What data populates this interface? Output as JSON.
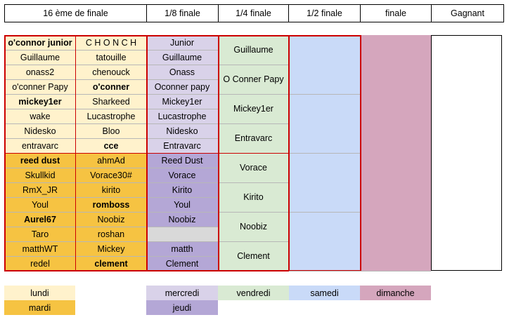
{
  "headers": [
    "16 ème de finale",
    "1/8 finale",
    "1/4 finale",
    "1/2 finale",
    "finale",
    "Gagnant"
  ],
  "round16": {
    "left": [
      {
        "name": "o'connor junior",
        "bold": true
      },
      {
        "name": "Guillaume",
        "bold": false
      },
      {
        "name": "onass2",
        "bold": false
      },
      {
        "name": "o'conner Papy",
        "bold": false
      },
      {
        "name": "mickey1er",
        "bold": true
      },
      {
        "name": "wake",
        "bold": false
      },
      {
        "name": "Nidesko",
        "bold": false
      },
      {
        "name": "entravarc",
        "bold": false
      },
      {
        "name": "reed dust",
        "bold": true
      },
      {
        "name": "Skullkid",
        "bold": false
      },
      {
        "name": "RmX_JR",
        "bold": false
      },
      {
        "name": "Youl",
        "bold": false
      },
      {
        "name": "Aurel67",
        "bold": true
      },
      {
        "name": "Taro",
        "bold": false
      },
      {
        "name": "matthWT",
        "bold": false
      },
      {
        "name": "redel",
        "bold": false
      }
    ],
    "right": [
      {
        "name": "C H O N C H",
        "bold": false
      },
      {
        "name": "tatouille",
        "bold": false
      },
      {
        "name": "chenouck",
        "bold": false
      },
      {
        "name": "o'conner",
        "bold": true
      },
      {
        "name": "Sharkeed",
        "bold": false
      },
      {
        "name": "Lucastrophe",
        "bold": false
      },
      {
        "name": "Bloo",
        "bold": false
      },
      {
        "name": "cce",
        "bold": true
      },
      {
        "name": "ahmAd",
        "bold": false
      },
      {
        "name": "Vorace30#",
        "bold": false
      },
      {
        "name": "kirito",
        "bold": false
      },
      {
        "name": "romboss",
        "bold": true
      },
      {
        "name": "Noobiz",
        "bold": false
      },
      {
        "name": "roshan",
        "bold": false
      },
      {
        "name": "Mickey",
        "bold": false
      },
      {
        "name": "clement",
        "bold": true
      }
    ]
  },
  "round8": [
    "Junior",
    "Guillaume",
    "Onass",
    "Oconner papy",
    "Mickey1er",
    "Lucastrophe",
    "Nidesko",
    "Entravarc",
    "Reed Dust",
    "Vorace",
    "Kirito",
    "Youl",
    "Noobiz",
    "",
    "matth",
    "Clement"
  ],
  "quarter": [
    "Guillaume",
    "O Conner Papy",
    "Mickey1er",
    "Entravarc",
    "Vorace",
    "Kirito",
    "Noobiz",
    "Clement"
  ],
  "legend": {
    "lundi": "lundi",
    "mardi": "mardi",
    "mercredi": "mercredi",
    "jeudi": "jeudi",
    "vendredi": "vendredi",
    "samedi": "samedi",
    "dimanche": "dimanche"
  },
  "colors": {
    "lundi": "#fff2cc",
    "mardi": "#f6c342",
    "mercredi": "#d9d2e9",
    "jeudi": "#b4a7d6",
    "vendredi": "#d9ead3",
    "samedi": "#c9daf8",
    "dimanche": "#d5a6bd",
    "border": "#cc0000"
  }
}
